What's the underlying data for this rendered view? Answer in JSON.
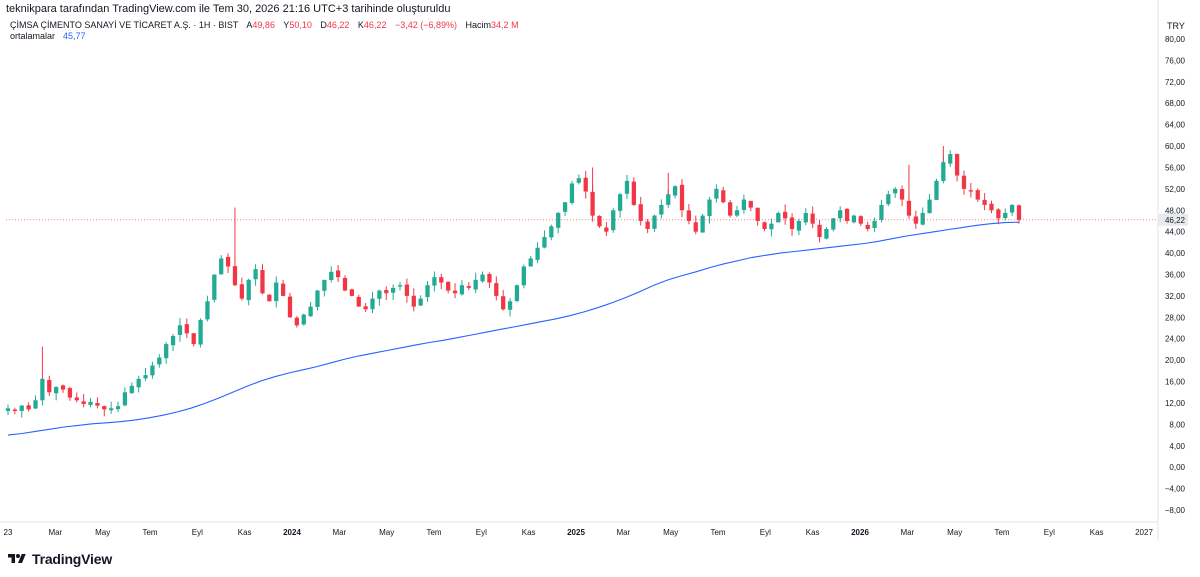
{
  "credit": "teknikpara tarafından TradingView.com ile Tem 30, 2026 21:16 UTC+3 tarihinde oluşturuldu",
  "symbol": {
    "name": "ÇİMSA ÇİMENTO SANAYİ VE TİCARET A.Ş. · 1H · BIST",
    "open_label": "A",
    "open": "49,86",
    "high_label": "Y",
    "high": "50,10",
    "low_label": "D",
    "low": "46,22",
    "close_label": "K",
    "close": "46,22",
    "change": "−3,42 (−6,89%)",
    "volume_label": "Hacim",
    "volume": "34,2 M"
  },
  "indicator": {
    "name": "ortalamalar",
    "value": "45,77"
  },
  "currency": "TRY",
  "last_price_label": "46,22",
  "brand": "TradingView",
  "colors": {
    "up": "#22ab94",
    "down": "#f23645",
    "ma": "#2962ff",
    "price_tag": "#f23645"
  },
  "chart_data": {
    "type": "candlestick",
    "title": "ÇİMSA ÇİMENTO SANAYİ VE TİCARET A.Ş. · 1H · BIST",
    "y_axis": {
      "ticks": [
        "80,00",
        "76,00",
        "72,00",
        "68,00",
        "64,00",
        "60,00",
        "56,00",
        "52,00",
        "48,00",
        "44,00",
        "40,00",
        "36,00",
        "32,00",
        "28,00",
        "24,00",
        "20,00",
        "16,00",
        "12,00",
        "8,00",
        "4,00",
        "0,00",
        "−4,00",
        "−8,00"
      ],
      "tick_values": [
        80,
        76,
        72,
        68,
        64,
        60,
        56,
        52,
        48,
        44,
        40,
        36,
        32,
        28,
        24,
        20,
        16,
        12,
        8,
        4,
        0,
        -4,
        -8
      ],
      "range": [
        -10,
        81
      ]
    },
    "x_axis": {
      "labels": [
        "23",
        "Mar",
        "May",
        "Tem",
        "Eyl",
        "Kas",
        "2024",
        "Mar",
        "May",
        "Tem",
        "Eyl",
        "Kas",
        "2025",
        "Mar",
        "May",
        "Tem",
        "Eyl",
        "Kas",
        "2026",
        "Mar",
        "May",
        "Tem",
        "Eyl",
        "Kas",
        "2027"
      ],
      "bold": [
        "2024",
        "2025",
        "2026"
      ],
      "label_months": [
        0,
        2,
        4,
        6,
        8,
        10,
        12,
        14,
        16,
        18,
        20,
        22,
        24,
        26,
        28,
        30,
        32,
        34,
        36,
        38,
        40,
        42,
        44,
        46,
        48
      ]
    },
    "closes": [
      11,
      10.5,
      11.5,
      10.8,
      12.5,
      16.5,
      14,
      15,
      14.5,
      13,
      12.5,
      11.8,
      12.2,
      11.5,
      10.8,
      11,
      11.4,
      14,
      15.2,
      16.5,
      17.2,
      19,
      20.5,
      23,
      24.5,
      26.5,
      25,
      23,
      27.5,
      31,
      36,
      39,
      37.5,
      34,
      31.5,
      35,
      37,
      32.5,
      31,
      34.5,
      32,
      28,
      26.5,
      28.5,
      30,
      33,
      35,
      36.5,
      35.5,
      33,
      32,
      30,
      29.5,
      31.5,
      33,
      32.5,
      33.5,
      34,
      32,
      30,
      31.5,
      34,
      35.5,
      34.5,
      33,
      32.5,
      34,
      33.5,
      35,
      36,
      34.5,
      32,
      29.5,
      31,
      34,
      37.5,
      39,
      41,
      43,
      45,
      47.5,
      49.5,
      53,
      54,
      51.5,
      47,
      45,
      44,
      48,
      51,
      53.5,
      49,
      46,
      44.5,
      47,
      49,
      51,
      52.5,
      48,
      46,
      44,
      47,
      50,
      52,
      49.5,
      47,
      48,
      50,
      48.5,
      46,
      44.5,
      45.5,
      47.5,
      46.5,
      44.5,
      46,
      47.5,
      45.5,
      43,
      44.5,
      46.5,
      48,
      46,
      47,
      45.5,
      44.5,
      46,
      49,
      51,
      52,
      50,
      47,
      45.5,
      47.5,
      50,
      53.5,
      57,
      58.5,
      54.5,
      52,
      51.5,
      50,
      49,
      48,
      46.5,
      47.5,
      49,
      46.22
    ],
    "highs_lows_note": "wicks estimated",
    "moving_average": [
      6,
      6.3,
      6.7,
      7.1,
      7.5,
      7.8,
      8.1,
      8.3,
      8.5,
      8.8,
      9.2,
      9.7,
      10.3,
      11,
      11.9,
      12.9,
      14,
      15.1,
      16.1,
      16.9,
      17.6,
      18.2,
      18.8,
      19.5,
      20.2,
      20.8,
      21.3,
      21.8,
      22.3,
      22.8,
      23.3,
      23.7,
      24.2,
      24.7,
      25.2,
      25.7,
      26.2,
      26.7,
      27.2,
      27.7,
      28.3,
      29,
      29.8,
      30.7,
      31.7,
      32.8,
      34,
      35,
      35.8,
      36.5,
      37.3,
      38,
      38.6,
      39.2,
      39.6,
      40,
      40.3,
      40.6,
      40.9,
      41.2,
      41.5,
      41.8,
      42.2,
      42.7,
      43.2,
      43.6,
      44,
      44.4,
      44.8,
      45.2,
      45.5,
      45.7,
      45.77
    ],
    "last_value": 46.22,
    "ma_last_value": 45.77
  }
}
